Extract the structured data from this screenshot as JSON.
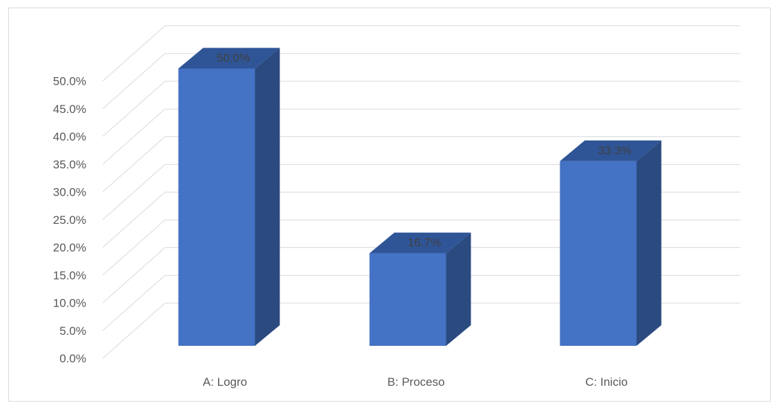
{
  "chart_data": {
    "type": "bar",
    "style": "3d-column",
    "categories": [
      "A: Logro",
      "B: Proceso",
      "C: Inicio"
    ],
    "values": [
      50.0,
      16.7,
      33.3
    ],
    "data_labels": [
      "50.0%",
      "16.7%",
      "33.3%"
    ],
    "title": "",
    "xlabel": "",
    "ylabel": "",
    "ylim": [
      0,
      50
    ],
    "ytick_values": [
      0,
      5,
      10,
      15,
      20,
      25,
      30,
      35,
      40,
      45,
      50
    ],
    "yticks": [
      "0.0%",
      "5.0%",
      "10.0%",
      "15.0%",
      "20.0%",
      "25.0%",
      "30.0%",
      "35.0%",
      "40.0%",
      "45.0%",
      "50.0%"
    ],
    "grid": true,
    "legend": "none",
    "colors": {
      "bar_front": "#4472c4",
      "bar_side": "#2b4a80",
      "bar_top": "#2f5597",
      "grid": "#d9d9d9",
      "text": "#595959"
    }
  }
}
